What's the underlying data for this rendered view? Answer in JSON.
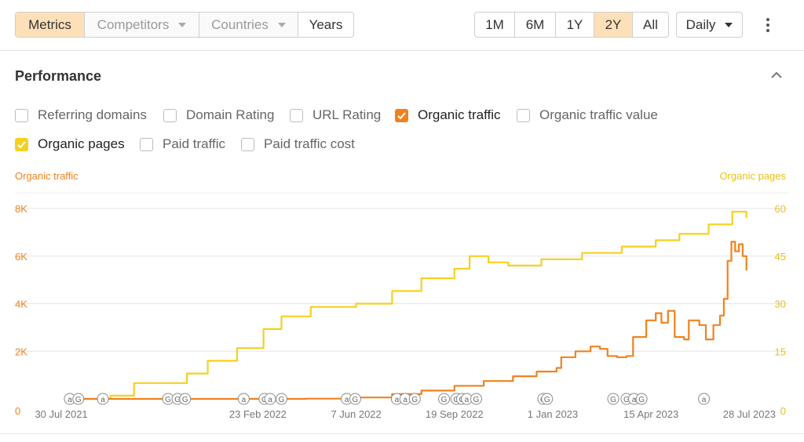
{
  "toolbar": {
    "tabs": [
      {
        "label": "Metrics",
        "active": true,
        "dropdown": false
      },
      {
        "label": "Competitors",
        "active": false,
        "dropdown": true
      },
      {
        "label": "Countries",
        "active": false,
        "dropdown": true
      },
      {
        "label": "Years",
        "active": false,
        "dropdown": false
      }
    ],
    "ranges": [
      "1M",
      "6M",
      "1Y",
      "2Y",
      "All"
    ],
    "active_range": "2Y",
    "interval": "Daily"
  },
  "panel": {
    "title": "Performance",
    "metrics_row1": [
      {
        "label": "Referring domains",
        "checked": false
      },
      {
        "label": "Domain Rating",
        "checked": false
      },
      {
        "label": "URL Rating",
        "checked": false
      },
      {
        "label": "Organic traffic",
        "checked": true,
        "color": "#f0821e"
      },
      {
        "label": "Organic traffic value",
        "checked": false
      }
    ],
    "metrics_row2": [
      {
        "label": "Organic pages",
        "checked": true,
        "color": "#f5d020"
      },
      {
        "label": "Paid traffic",
        "checked": false
      },
      {
        "label": "Paid traffic cost",
        "checked": false
      }
    ]
  },
  "chart_data": {
    "type": "line",
    "left_axis_title": "Organic traffic",
    "right_axis_title": "Organic pages",
    "left_ticks": [
      "0",
      "2K",
      "4K",
      "6K",
      "8K"
    ],
    "right_ticks": [
      "0",
      "15",
      "30",
      "45",
      "60"
    ],
    "ylim_left": [
      0,
      8000
    ],
    "ylim_right": [
      0,
      60
    ],
    "x_ticks": [
      {
        "label": "30 Jul 2021",
        "date": "2021-07-30"
      },
      {
        "label": "23 Feb 2022",
        "date": "2022-02-23"
      },
      {
        "label": "7 Jun 2022",
        "date": "2022-06-07"
      },
      {
        "label": "19 Sep 2022",
        "date": "2022-09-19"
      },
      {
        "label": "1 Jan 2023",
        "date": "2023-01-01"
      },
      {
        "label": "15 Apr 2023",
        "date": "2023-04-15"
      },
      {
        "label": "28 Jul 2023",
        "date": "2023-07-28"
      }
    ],
    "grid": true,
    "colors": {
      "organic_traffic": "#f0821e",
      "organic_pages": "#f5d020"
    },
    "series": [
      {
        "name": "Organic traffic",
        "axis": "left",
        "points": [
          [
            "2021-08-05",
            0
          ],
          [
            "2022-01-01",
            0
          ],
          [
            "2022-04-15",
            10
          ],
          [
            "2022-06-07",
            60
          ],
          [
            "2022-07-15",
            200
          ],
          [
            "2022-08-15",
            350
          ],
          [
            "2022-09-19",
            550
          ],
          [
            "2022-10-20",
            750
          ],
          [
            "2022-11-20",
            950
          ],
          [
            "2022-12-15",
            1150
          ],
          [
            "2023-01-05",
            1300
          ],
          [
            "2023-01-10",
            1750
          ],
          [
            "2023-01-25",
            2000
          ],
          [
            "2023-02-10",
            2200
          ],
          [
            "2023-02-20",
            2100
          ],
          [
            "2023-02-28",
            1800
          ],
          [
            "2023-03-10",
            1750
          ],
          [
            "2023-03-20",
            1800
          ],
          [
            "2023-03-27",
            2600
          ],
          [
            "2023-04-10",
            3300
          ],
          [
            "2023-04-20",
            3600
          ],
          [
            "2023-04-26",
            3200
          ],
          [
            "2023-05-03",
            3700
          ],
          [
            "2023-05-10",
            2600
          ],
          [
            "2023-05-20",
            2500
          ],
          [
            "2023-05-25",
            3300
          ],
          [
            "2023-06-05",
            3100
          ],
          [
            "2023-06-12",
            2500
          ],
          [
            "2023-06-20",
            3100
          ],
          [
            "2023-06-27",
            3500
          ],
          [
            "2023-07-01",
            4200
          ],
          [
            "2023-07-05",
            5800
          ],
          [
            "2023-07-09",
            6600
          ],
          [
            "2023-07-13",
            6200
          ],
          [
            "2023-07-17",
            6500
          ],
          [
            "2023-07-21",
            6000
          ],
          [
            "2023-07-25",
            5400
          ]
        ]
      },
      {
        "name": "Organic pages",
        "axis": "right",
        "points": [
          [
            "2021-08-05",
            0
          ],
          [
            "2021-09-20",
            1
          ],
          [
            "2021-10-15",
            5
          ],
          [
            "2021-11-15",
            5
          ],
          [
            "2021-12-10",
            8
          ],
          [
            "2022-01-01",
            12
          ],
          [
            "2022-02-01",
            16
          ],
          [
            "2022-03-01",
            22
          ],
          [
            "2022-03-20",
            26
          ],
          [
            "2022-04-20",
            29
          ],
          [
            "2022-06-07",
            30
          ],
          [
            "2022-07-15",
            34
          ],
          [
            "2022-08-15",
            38
          ],
          [
            "2022-09-19",
            41
          ],
          [
            "2022-10-05",
            45
          ],
          [
            "2022-10-25",
            43
          ],
          [
            "2022-11-15",
            42
          ],
          [
            "2022-12-20",
            44
          ],
          [
            "2023-02-01",
            46
          ],
          [
            "2023-03-15",
            48
          ],
          [
            "2023-04-20",
            50
          ],
          [
            "2023-05-15",
            52
          ],
          [
            "2023-06-15",
            55
          ],
          [
            "2023-07-10",
            59
          ],
          [
            "2023-07-25",
            57
          ]
        ]
      }
    ],
    "annotations": [
      {
        "date": "2021-08-08",
        "label": "a"
      },
      {
        "date": "2021-08-17",
        "label": "G"
      },
      {
        "date": "2021-09-12",
        "label": "a"
      },
      {
        "date": "2021-11-20",
        "label": "G"
      },
      {
        "date": "2021-11-30",
        "label": "G"
      },
      {
        "date": "2021-12-08",
        "label": "G"
      },
      {
        "date": "2022-02-08",
        "label": "a"
      },
      {
        "date": "2022-03-02",
        "label": "G"
      },
      {
        "date": "2022-03-08",
        "label": "a"
      },
      {
        "date": "2022-03-20",
        "label": "G"
      },
      {
        "date": "2022-05-28",
        "label": "a"
      },
      {
        "date": "2022-06-06",
        "label": "G"
      },
      {
        "date": "2022-07-20",
        "label": "a"
      },
      {
        "date": "2022-07-29",
        "label": "a"
      },
      {
        "date": "2022-08-08",
        "label": "G"
      },
      {
        "date": "2022-09-08",
        "label": "G"
      },
      {
        "date": "2022-09-21",
        "label": "G"
      },
      {
        "date": "2022-09-27",
        "label": "G"
      },
      {
        "date": "2022-10-02",
        "label": "a"
      },
      {
        "date": "2022-10-12",
        "label": "G"
      },
      {
        "date": "2022-12-22",
        "label": "G"
      },
      {
        "date": "2022-12-26",
        "label": "G"
      },
      {
        "date": "2023-03-06",
        "label": "G"
      },
      {
        "date": "2023-03-20",
        "label": "G"
      },
      {
        "date": "2023-03-28",
        "label": "a"
      },
      {
        "date": "2023-04-05",
        "label": "G"
      },
      {
        "date": "2023-06-10",
        "label": "a"
      }
    ]
  }
}
